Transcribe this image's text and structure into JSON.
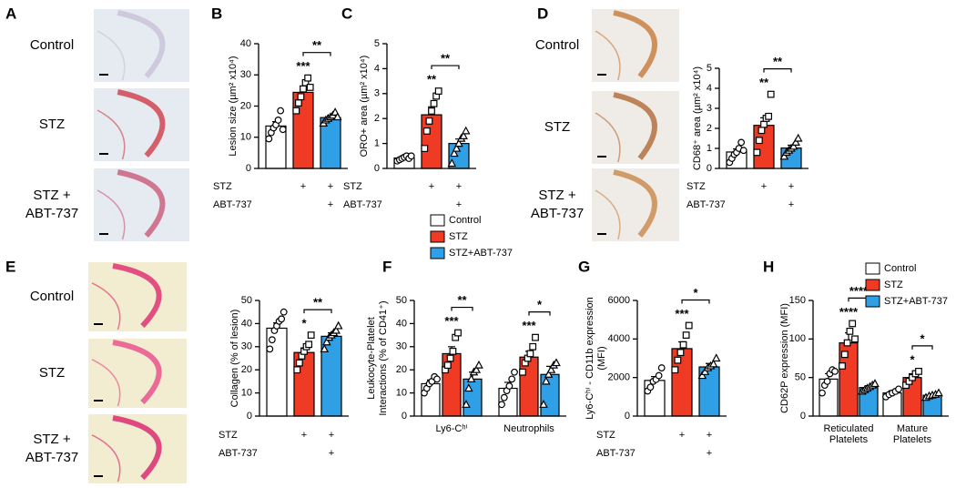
{
  "panel_labels": [
    "A",
    "B",
    "C",
    "D",
    "E",
    "F",
    "G",
    "H"
  ],
  "image_labels": [
    [
      "Control"
    ],
    [
      "STZ"
    ],
    [
      "STZ +",
      "ABT-737"
    ]
  ],
  "legend": {
    "names": [
      "Control",
      "STZ",
      "STZ+ABT-737"
    ],
    "colors": [
      "#ffffff",
      "#ef3b24",
      "#2f9fe6"
    ]
  },
  "chart_data": [
    {
      "type": "bar",
      "ylabel": [
        "Lesion size (µm² x10⁴)"
      ],
      "ylim": [
        0,
        40
      ],
      "yticks": [
        0,
        10,
        20,
        30,
        40
      ],
      "colors": [
        "#ffffff",
        "#ef3b24",
        "#2f9fe6"
      ],
      "values": [
        13.6,
        24.4,
        16.3
      ],
      "errors": [
        1.4,
        1.9,
        0.6
      ],
      "points": [
        [
          9.5,
          11.5,
          13,
          14,
          15.5,
          18.5,
          12.5
        ],
        [
          18.5,
          21,
          23,
          25.5,
          27.5,
          29,
          26
        ],
        [
          14.5,
          15.5,
          16,
          16.5,
          17,
          18,
          16.5
        ]
      ],
      "stars": [
        null,
        "***",
        null
      ],
      "brackets": [
        {
          "label": "**"
        }
      ],
      "rows": [
        {
          "label": "STZ",
          "marks": [
            null,
            "+",
            "+"
          ]
        },
        {
          "label": "ABT-737",
          "marks": [
            null,
            null,
            "+"
          ]
        }
      ]
    },
    {
      "type": "bar",
      "ylabel": [
        "ORO+ area (µm² x10⁴)"
      ],
      "ylim": [
        0,
        5
      ],
      "yticks": [
        0,
        1,
        2,
        3,
        4,
        5
      ],
      "colors": [
        "#ffffff",
        "#ef3b24",
        "#2f9fe6"
      ],
      "values": [
        0.42,
        2.15,
        1.0
      ],
      "errors": [
        0.05,
        0.32,
        0.18
      ],
      "points": [
        [
          0.3,
          0.35,
          0.4,
          0.45,
          0.5,
          0.4,
          0.5
        ],
        [
          0.8,
          1.5,
          1.9,
          2.3,
          2.6,
          2.9,
          3.1
        ],
        [
          0.2,
          0.6,
          0.8,
          1.0,
          1.2,
          1.3,
          1.5
        ]
      ],
      "stars": [
        null,
        "**",
        null
      ],
      "brackets": [
        {
          "label": "**"
        }
      ],
      "rows": [
        {
          "label": "STZ",
          "marks": [
            null,
            "+",
            "+"
          ]
        },
        {
          "label": "ABT-737",
          "marks": [
            null,
            null,
            "+"
          ]
        }
      ]
    },
    {
      "type": "bar",
      "ylabel": [
        "CD68⁺ area (µm² x10⁴)"
      ],
      "ylim": [
        0,
        5
      ],
      "yticks": [
        0,
        1,
        2,
        3,
        4,
        5
      ],
      "colors": [
        "#ffffff",
        "#ef3b24",
        "#2f9fe6"
      ],
      "values": [
        0.82,
        2.15,
        1.02
      ],
      "errors": [
        0.15,
        0.38,
        0.14
      ],
      "points": [
        [
          0.3,
          0.5,
          0.7,
          0.8,
          1.0,
          1.3,
          0.9
        ],
        [
          0.8,
          1.4,
          1.9,
          2.2,
          2.5,
          2.6,
          3.7
        ],
        [
          0.6,
          0.8,
          0.9,
          1.0,
          1.1,
          1.3,
          1.5
        ]
      ],
      "stars": [
        null,
        "**",
        null
      ],
      "brackets": [
        {
          "label": "**"
        }
      ],
      "rows": [
        {
          "label": "STZ",
          "marks": [
            null,
            "+",
            "+"
          ]
        },
        {
          "label": "ABT-737",
          "marks": [
            null,
            null,
            "+"
          ]
        }
      ]
    },
    {
      "type": "bar",
      "ylabel": [
        "Collagen (% of lesion)"
      ],
      "ylim": [
        0,
        50
      ],
      "yticks": [
        0,
        10,
        20,
        30,
        40,
        50
      ],
      "colors": [
        "#ffffff",
        "#ef3b24",
        "#2f9fe6"
      ],
      "values": [
        38,
        27.5,
        34.5
      ],
      "errors": [
        2.3,
        2.0,
        1.5
      ],
      "points": [
        [
          29,
          33,
          37,
          39,
          41,
          42,
          45
        ],
        [
          20,
          23,
          26,
          28,
          30,
          31,
          35
        ],
        [
          29,
          32,
          34,
          35,
          36,
          37,
          39
        ]
      ],
      "stars": [
        null,
        "*",
        null
      ],
      "brackets": [
        {
          "label": "**"
        }
      ],
      "rows": [
        {
          "label": "STZ",
          "marks": [
            null,
            "+",
            "+"
          ]
        },
        {
          "label": "ABT-737",
          "marks": [
            null,
            null,
            "+"
          ]
        }
      ]
    },
    {
      "type": "grouped_bar",
      "ylabel": [
        "Leukocyte-Platelet",
        "Interactions (% of CD41⁺)"
      ],
      "ylim": [
        0,
        50
      ],
      "yticks": [
        0,
        10,
        20,
        30,
        40,
        50
      ],
      "categories": [
        [
          "Ly6-Cʰⁱ"
        ],
        [
          "Neutrophils"
        ]
      ],
      "series": [
        {
          "color": "#ffffff",
          "values": [
            14,
            12
          ],
          "errors": [
            1.6,
            2.6
          ],
          "points": [
            [
              10,
              12,
              14,
              15,
              17,
              16
            ],
            [
              5,
              8,
              11,
              13,
              16,
              19
            ]
          ]
        },
        {
          "color": "#ef3b24",
          "values": [
            27,
            25.5
          ],
          "errors": [
            3,
            2.5
          ],
          "points": [
            [
              20,
              22,
              25,
              28,
              34,
              36
            ],
            [
              19,
              23,
              25,
              27,
              30,
              34
            ]
          ],
          "stars": [
            "***",
            "***"
          ]
        },
        {
          "color": "#2f9fe6",
          "values": [
            16,
            18
          ],
          "errors": [
            3,
            3.5
          ],
          "points": [
            [
              5,
              12,
              16,
              19,
              20,
              22
            ],
            [
              5,
              15,
              18,
              20,
              22,
              23
            ]
          ]
        }
      ],
      "brackets": [
        {
          "label": "**",
          "group": 0
        },
        {
          "label": "*",
          "group": 1
        }
      ]
    },
    {
      "type": "bar",
      "ylabel": [
        "Ly6-Cʰⁱ - CD11b expression",
        "(MFI)"
      ],
      "ylim": [
        0,
        6000
      ],
      "yticks": [
        0,
        2000,
        4000,
        6000
      ],
      "colors": [
        "#ffffff",
        "#ef3b24",
        "#2f9fe6"
      ],
      "values": [
        1850,
        3500,
        2550
      ],
      "errors": [
        200,
        350,
        180
      ],
      "points": [
        [
          1300,
          1500,
          1800,
          1900,
          2100,
          2500
        ],
        [
          2400,
          2900,
          3300,
          3700,
          4200,
          4700
        ],
        [
          2100,
          2300,
          2500,
          2600,
          2700,
          3000
        ]
      ],
      "stars": [
        null,
        "***",
        null
      ],
      "brackets": [
        {
          "label": "*"
        }
      ],
      "rows": [
        {
          "label": "STZ",
          "marks": [
            null,
            "+",
            "+"
          ]
        },
        {
          "label": "ABT-737",
          "marks": [
            null,
            null,
            "+"
          ]
        }
      ]
    },
    {
      "type": "grouped_bar",
      "ylabel": [
        "CD62P expression (MFI)"
      ],
      "ylim": [
        0,
        150
      ],
      "yticks": [
        0,
        50,
        100,
        150
      ],
      "categories": [
        [
          "Reticulated",
          "Platelets"
        ],
        [
          "Mature",
          "Platelets"
        ]
      ],
      "series": [
        {
          "name": "Control",
          "color": "#ffffff",
          "values": [
            48,
            30
          ],
          "errors": [
            7,
            3
          ],
          "points": [
            [
              30,
              40,
              45,
              55,
              60,
              58
            ],
            [
              25,
              28,
              30,
              32,
              35
            ]
          ]
        },
        {
          "name": "STZ",
          "color": "#ef3b24",
          "values": [
            95,
            50
          ],
          "errors": [
            13,
            5
          ],
          "points": [
            [
              65,
              80,
              95,
              110,
              120,
              100
            ],
            [
              40,
              45,
              50,
              55,
              58
            ]
          ],
          "stars": [
            "****",
            "*"
          ]
        },
        {
          "name": "STZ+ABT-737",
          "color": "#2f9fe6",
          "values": [
            37,
            27
          ],
          "errors": [
            2.5,
            1.5
          ],
          "points": [
            [
              32,
              34,
              36,
              38,
              40,
              42
            ],
            [
              24,
              26,
              27,
              28,
              30
            ]
          ]
        }
      ],
      "brackets": [
        {
          "label": "****",
          "group": 0
        },
        {
          "label": "*",
          "group": 1
        }
      ]
    }
  ]
}
